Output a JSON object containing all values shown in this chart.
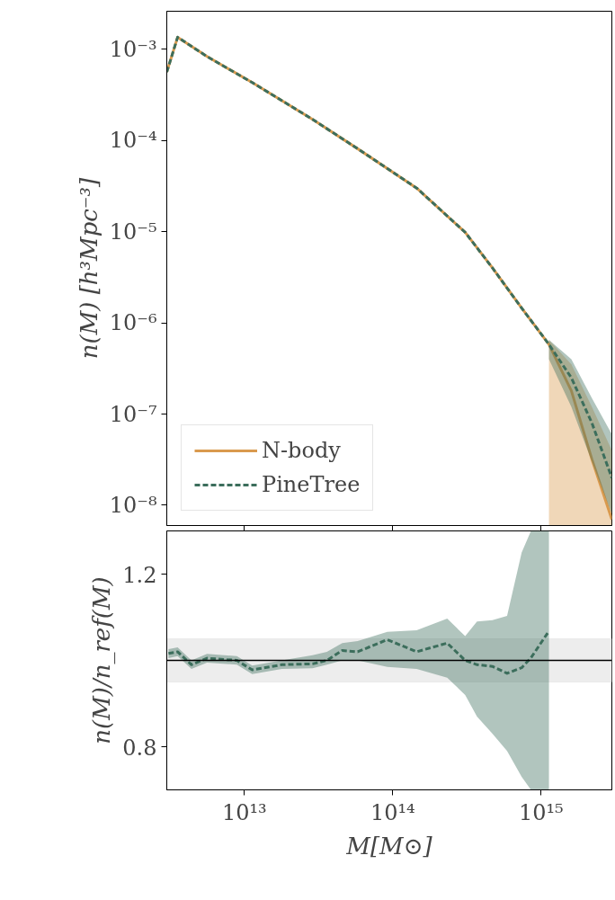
{
  "chart_data": [
    {
      "type": "line",
      "ylabel": "n(M) [h³Mpc⁻³]",
      "log": "xy",
      "grid": false,
      "legend": "bottom left",
      "tick_labels": "y",
      "x": [
        3000000000000.0,
        3550000000000.0,
        5600000000000.0,
        11300000000000.0,
        28800000000000.0,
        58000000000000.0,
        145000000000000.0,
        308000000000000.0,
        470000000000000.0,
        740000000000000.0,
        1130000000000000.0,
        1600000000000000.0,
        2200000000000000.0,
        3000000000000000.0
      ],
      "xlim": [
        3000000000000.0,
        3000000000000000.0
      ],
      "xticks": [
        {
          "value": 10000000000000.0,
          "label": null
        },
        {
          "value": 100000000000000.0,
          "label": null
        },
        {
          "value": 1000000000000000.0,
          "label": null
        }
      ],
      "ylim": [
        6e-09,
        0.0026
      ],
      "yticks": [
        {
          "value": 1e-08,
          "label": "10⁻⁸"
        },
        {
          "value": 1e-07,
          "label": "10⁻⁷"
        },
        {
          "value": 1e-06,
          "label": "10⁻⁶"
        },
        {
          "value": 1e-05,
          "label": "10⁻⁵"
        },
        {
          "value": 0.0001,
          "label": "10⁻⁴"
        },
        {
          "value": 0.001,
          "label": "10⁻³"
        }
      ],
      "series": [
        {
          "name": "N-body",
          "color": "#d99a4e",
          "line_style": "solid",
          "values": [
            0.00056,
            0.00135,
            0.00083,
            0.00043,
            0.00017,
            8.1e-05,
            3e-05,
            9.8e-06,
            4e-06,
            1.45e-06,
            5.8e-07,
            1.8e-07,
            3.2e-08,
            7e-09
          ],
          "lower": [
            null,
            null,
            null,
            null,
            null,
            null,
            null,
            null,
            null,
            null,
            6e-09,
            6e-09,
            6e-09,
            6e-09
          ],
          "upper": [
            null,
            null,
            null,
            null,
            null,
            null,
            null,
            null,
            null,
            null,
            6.5e-07,
            3.5e-07,
            1.2e-07,
            4e-08
          ]
        },
        {
          "name": "PineTree",
          "color": "#3c6e5c",
          "line_style": "dashed",
          "values": [
            0.00056,
            0.00135,
            0.00083,
            0.00043,
            0.00017,
            8.1e-05,
            3e-05,
            9.8e-06,
            4e-06,
            1.45e-06,
            5.8e-07,
            2.5e-07,
            8e-08,
            2e-08
          ],
          "lower": [
            null,
            null,
            null,
            null,
            null,
            null,
            null,
            null,
            null,
            null,
            4e-07,
            1.2e-07,
            3e-08,
            8e-09
          ],
          "upper": [
            null,
            null,
            null,
            null,
            null,
            null,
            null,
            null,
            null,
            null,
            6.5e-07,
            4e-07,
            1.5e-07,
            6e-08
          ]
        }
      ]
    },
    {
      "type": "line",
      "xlabel": "M[M⊙]",
      "ylabel": "n(M)/n_ref(M)",
      "log": "x",
      "grid": false,
      "x": [
        3080000000000.0,
        3550000000000.0,
        4400000000000.0,
        5600000000000.0,
        8900000000000.0,
        11300000000000.0,
        17900000000000.0,
        28800000000000.0,
        36000000000000.0,
        45700000000000.0,
        58000000000000.0,
        92000000000000.0,
        145000000000000.0,
        233000000000000.0,
        308000000000000.0,
        370000000000000.0,
        470000000000000.0,
        590000000000000.0,
        740000000000000.0,
        855000000000000.0,
        1130000000000000.0
      ],
      "xlim": [
        3000000000000.0,
        3000000000000000.0
      ],
      "xticks": [
        {
          "value": 10000000000000.0,
          "label": "10¹³"
        },
        {
          "value": 100000000000000.0,
          "label": "10¹⁴"
        },
        {
          "value": 1000000000000000.0,
          "label": "10¹⁵"
        }
      ],
      "ylim": [
        0.7,
        1.3
      ],
      "yticks": [
        0.8,
        1.2
      ],
      "ref_lines": [
        {
          "axis": "y",
          "value": 1.0,
          "label": null,
          "color": "#000000"
        }
      ],
      "bands": [
        {
          "axis": "y",
          "from": 0.95,
          "to": 1.05,
          "label": null,
          "color": "#e8e8e8"
        }
      ],
      "series": [
        {
          "color": "#3c6e5c",
          "line_style": "dashed",
          "values": [
            1.016,
            1.02,
            0.99,
            1.005,
            1.0,
            0.978,
            0.99,
            0.992,
            1.0,
            1.023,
            1.02,
            1.048,
            1.02,
            1.04,
            1.0,
            0.99,
            0.986,
            0.97,
            0.983,
            1.006,
            1.068
          ],
          "lower": [
            1.005,
            1.01,
            0.98,
            0.995,
            0.99,
            0.968,
            0.98,
            0.982,
            0.99,
            1.0,
            1.0,
            0.985,
            0.98,
            0.96,
            0.92,
            0.87,
            0.83,
            0.79,
            0.73,
            0.7,
            0.7
          ],
          "upper": [
            1.026,
            1.03,
            1.0,
            1.015,
            1.01,
            0.988,
            1.0,
            1.012,
            1.02,
            1.04,
            1.045,
            1.066,
            1.07,
            1.097,
            1.056,
            1.09,
            1.093,
            1.103,
            1.25,
            1.3,
            1.3
          ]
        }
      ]
    }
  ]
}
